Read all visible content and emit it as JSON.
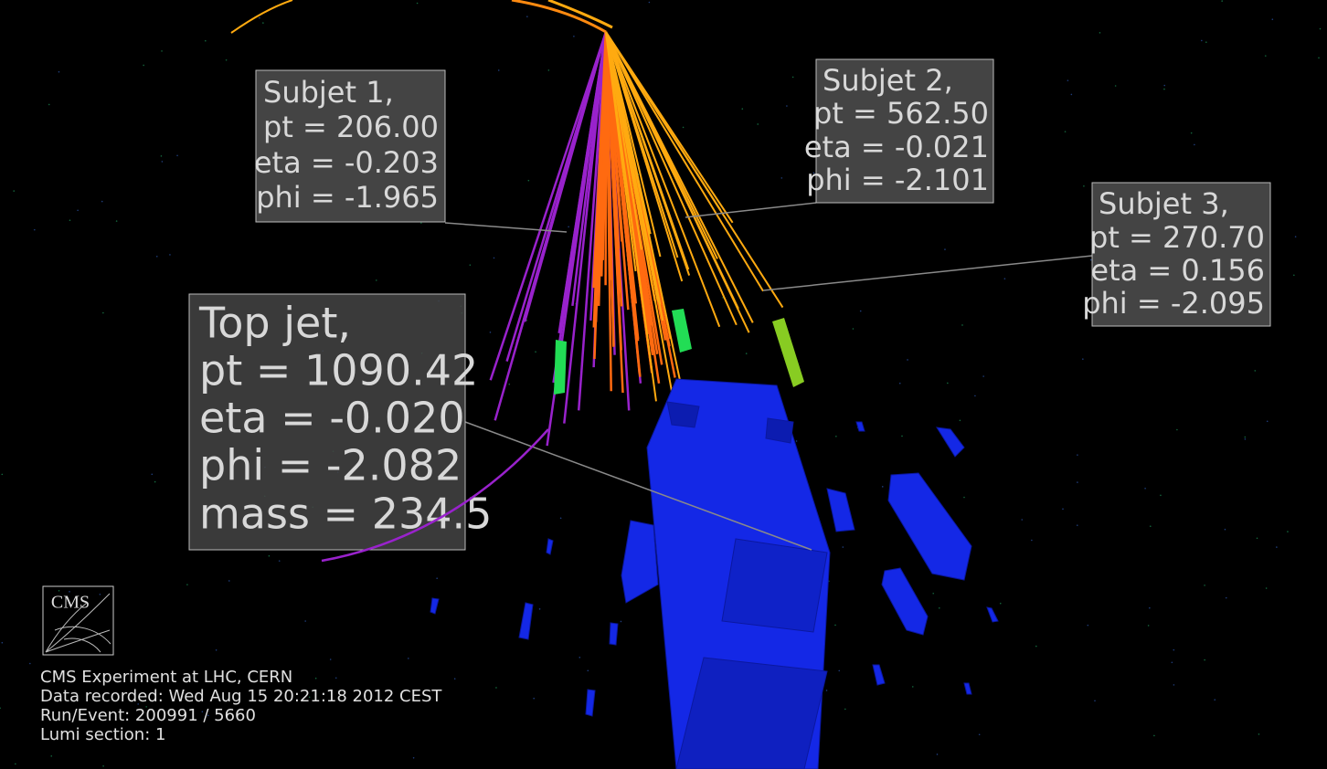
{
  "labels": [
    {
      "lines": [
        "Subjet 1,",
        "pt = 206.00",
        "eta = -0.203",
        "phi = -1.965"
      ]
    },
    {
      "lines": [
        "Subjet 2,",
        "pt = 562.50",
        "eta = -0.021",
        "phi = -2.101"
      ]
    },
    {
      "lines": [
        "Subjet 3,",
        "pt = 270.70",
        "eta = 0.156",
        "phi = -2.095"
      ]
    },
    {
      "lines": [
        "Top jet,",
        "pt = 1090.42",
        "eta = -0.020",
        "phi = -2.082",
        "mass = 234.5"
      ]
    }
  ],
  "logo": "CMS",
  "info": [
    "CMS Experiment at LHC, CERN",
    "Data recorded: Wed Aug 15 20:21:18 2012 CEST",
    "Run/Event: 200991 / 5660",
    "Lumi section: 1"
  ]
}
